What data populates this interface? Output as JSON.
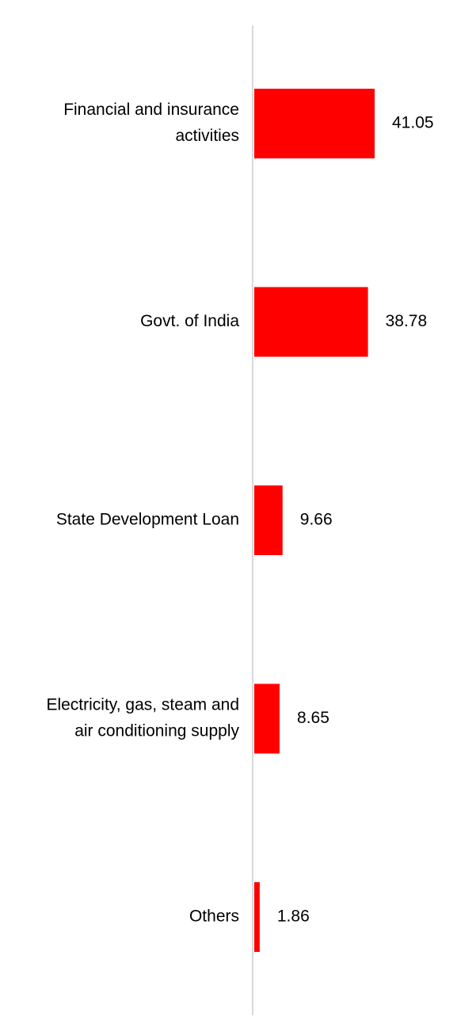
{
  "colors": {
    "bar": "#ff0000",
    "axis": "#d9d9d9"
  },
  "chart_data": {
    "type": "bar",
    "orientation": "horizontal",
    "categories": [
      [
        "Financial and insurance",
        "activities"
      ],
      [
        "Govt. of India"
      ],
      [
        "State Development Loan"
      ],
      [
        "Electricity, gas, steam and",
        "air conditioning supply"
      ],
      [
        "Others"
      ]
    ],
    "values": [
      41.05,
      38.78,
      9.66,
      8.65,
      1.86
    ],
    "value_labels": [
      "41.05",
      "38.78",
      "9.66",
      "8.65",
      "1.86"
    ],
    "xlim": [
      0,
      45
    ],
    "grid": false,
    "legend": "none"
  }
}
